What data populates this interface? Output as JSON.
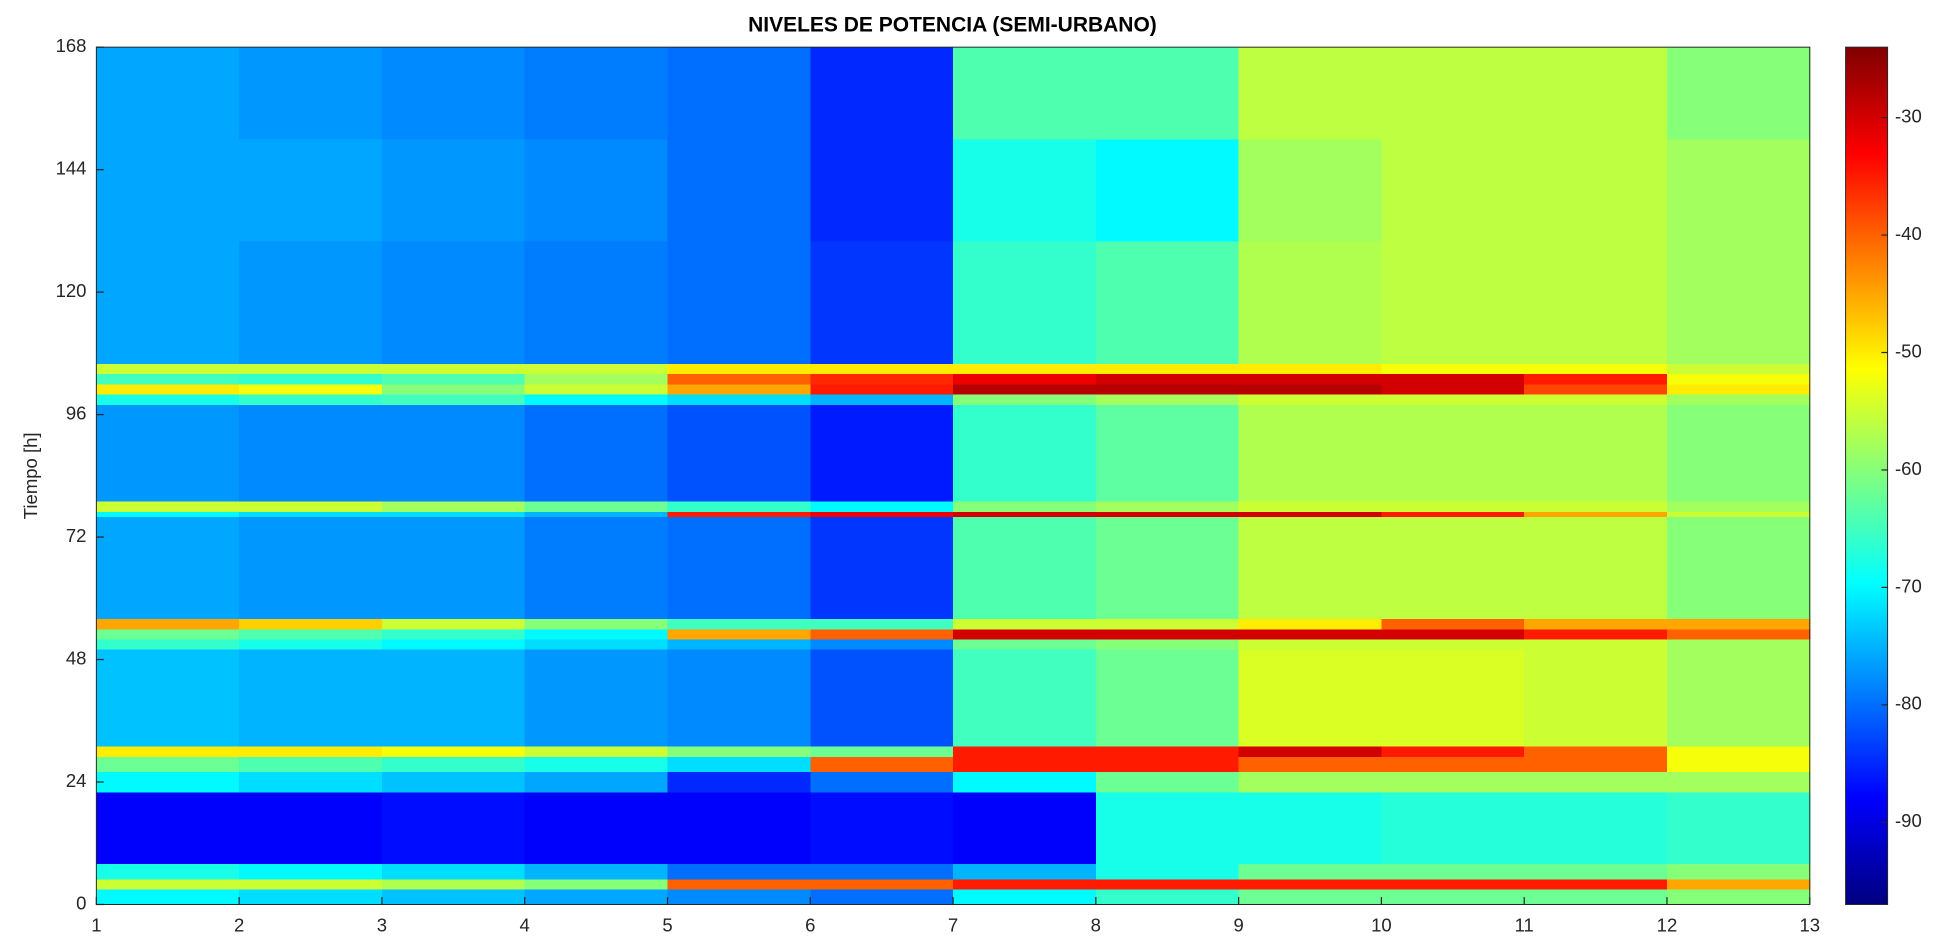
{
  "chart_data": {
    "type": "heatmap",
    "title": "NIVELES DE POTENCIA (SEMI-URBANO)",
    "y_label": "Tiempo [h]",
    "colormap": "jet",
    "x": [
      1,
      2,
      3,
      4,
      5,
      6,
      7,
      8,
      9,
      10,
      11,
      12,
      13
    ],
    "y": [
      0,
      3,
      5,
      8,
      22,
      26,
      29,
      31,
      50,
      52,
      54,
      56,
      76,
      77,
      79,
      98,
      100,
      102,
      104,
      106,
      130,
      150,
      168
    ],
    "values": [
      [
        -70,
        -72,
        -74,
        -76,
        -78,
        -80,
        -70,
        -66,
        -62,
        -62,
        -62,
        -60
      ],
      [
        -55,
        -55,
        -57,
        -60,
        -40,
        -40,
        -35,
        -35,
        -35,
        -35,
        -35,
        -45
      ],
      [
        -68,
        -70,
        -72,
        -75,
        -80,
        -80,
        -75,
        -68,
        -62,
        -62,
        -62,
        -60
      ],
      [
        -88,
        -88,
        -87,
        -88,
        -88,
        -87,
        -88,
        -68,
        -68,
        -67,
        -67,
        -66
      ],
      [
        -70,
        -72,
        -74,
        -76,
        -85,
        -80,
        -70,
        -62,
        -58,
        -58,
        -58,
        -58
      ],
      [
        -62,
        -64,
        -66,
        -68,
        -72,
        -40,
        -35,
        -35,
        -40,
        -40,
        -40,
        -52
      ],
      [
        -50,
        -50,
        -52,
        -55,
        -60,
        -62,
        -35,
        -35,
        -30,
        -35,
        -40,
        -52
      ],
      [
        -74,
        -75,
        -75,
        -77,
        -78,
        -82,
        -65,
        -62,
        -54,
        -54,
        -55,
        -58
      ],
      [
        -66,
        -68,
        -70,
        -72,
        -75,
        -78,
        -62,
        -60,
        -55,
        -55,
        -55,
        -58
      ],
      [
        -62,
        -64,
        -66,
        -70,
        -45,
        -40,
        -30,
        -30,
        -30,
        -30,
        -35,
        -40
      ],
      [
        -45,
        -48,
        -55,
        -60,
        -65,
        -65,
        -55,
        -55,
        -50,
        -40,
        -45,
        -45
      ],
      [
        -76,
        -77,
        -77,
        -79,
        -80,
        -84,
        -64,
        -62,
        -56,
        -56,
        -56,
        -60
      ],
      [
        -70,
        -72,
        -72,
        -75,
        -35,
        -32,
        -30,
        -30,
        -30,
        -35,
        -45,
        -55
      ],
      [
        -55,
        -55,
        -58,
        -62,
        -66,
        -70,
        -60,
        -58,
        -55,
        -55,
        -55,
        -58
      ],
      [
        -77,
        -78,
        -78,
        -80,
        -82,
        -86,
        -66,
        -63,
        -57,
        -57,
        -57,
        -60
      ],
      [
        -68,
        -66,
        -65,
        -70,
        -72,
        -75,
        -60,
        -58,
        -55,
        -55,
        -55,
        -58
      ],
      [
        -50,
        -52,
        -60,
        -55,
        -45,
        -35,
        -28,
        -28,
        -28,
        -30,
        -38,
        -50
      ],
      [
        -65,
        -66,
        -64,
        -58,
        -40,
        -36,
        -32,
        -30,
        -30,
        -30,
        -35,
        -52
      ],
      [
        -55,
        -55,
        -55,
        -55,
        -50,
        -50,
        -50,
        -50,
        -50,
        -52,
        -52,
        -55
      ],
      [
        -76,
        -77,
        -78,
        -79,
        -80,
        -84,
        -66,
        -64,
        -57,
        -56,
        -56,
        -58
      ],
      [
        -76,
        -76,
        -77,
        -78,
        -80,
        -85,
        -68,
        -70,
        -58,
        -56,
        -56,
        -58
      ],
      [
        -76,
        -77,
        -78,
        -79,
        -80,
        -85,
        -64,
        -64,
        -56,
        -56,
        -56,
        -60
      ]
    ],
    "xlim": [
      1,
      13
    ],
    "xticks": [
      1,
      2,
      3,
      4,
      5,
      6,
      7,
      8,
      9,
      10,
      11,
      12,
      13
    ],
    "ylim": [
      0,
      168
    ],
    "yticks": [
      0,
      24,
      48,
      72,
      96,
      120,
      144,
      168
    ],
    "clim": [
      -97,
      -24
    ],
    "cticks": [
      -90,
      -80,
      -70,
      -60,
      -50,
      -40,
      -30
    ]
  }
}
